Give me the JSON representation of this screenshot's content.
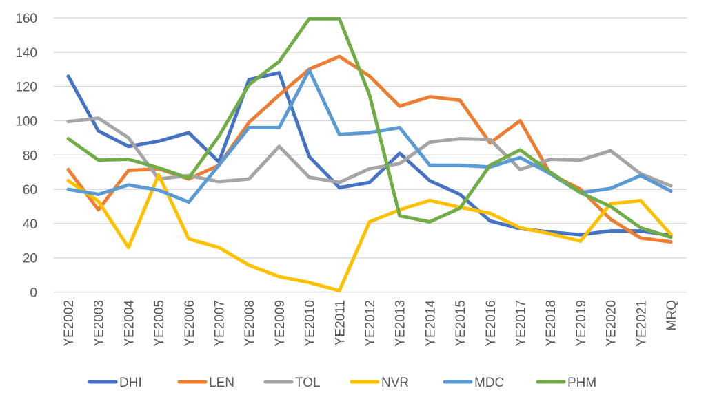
{
  "chart_data": {
    "type": "line",
    "title": "",
    "xlabel": "",
    "ylabel": "",
    "ylim": [
      0,
      160
    ],
    "yticks": [
      "0",
      "20",
      "40",
      "60",
      "80",
      "100",
      "120",
      "140",
      "160"
    ],
    "grid": true,
    "legend_position": "bottom",
    "categories": [
      "YE2002",
      "YE2003",
      "YE2004",
      "YE2005",
      "YE2006",
      "YE2007",
      "YE2008",
      "YE2009",
      "YE2010",
      "YE2011",
      "YE2012",
      "YE2013",
      "YE2014",
      "YE2015",
      "YE2016",
      "YE2017",
      "YE2018",
      "YE2019",
      "YE2020",
      "YE2021",
      "MRQ"
    ],
    "series": [
      {
        "name": "DHI",
        "color": "#4472c4",
        "values": [
          126,
          94,
          85,
          88,
          93,
          76,
          124,
          128,
          79,
          61,
          64,
          81,
          65,
          57,
          41.5,
          37,
          35,
          33.5,
          35.7,
          35.7,
          33
        ]
      },
      {
        "name": "LEN",
        "color": "#ed7d31",
        "values": [
          71.5,
          48,
          71,
          72,
          66,
          74,
          99,
          115,
          130,
          137.5,
          126,
          108.5,
          114,
          112,
          87,
          100,
          69,
          60,
          42.5,
          31.5,
          29.3
        ]
      },
      {
        "name": "TOL",
        "color": "#a5a5a5",
        "values": [
          99.5,
          101.5,
          90,
          66,
          68,
          64.5,
          66,
          85,
          67,
          64,
          72,
          75,
          87.5,
          89.5,
          89,
          71.5,
          77.5,
          77,
          82.5,
          69,
          62
        ]
      },
      {
        "name": "NVR",
        "color": "#ffc000",
        "values": [
          65,
          53,
          26,
          68.5,
          31,
          26,
          15.7,
          9,
          5.6,
          0.8,
          41,
          48,
          53.5,
          49.5,
          46,
          37.5,
          34,
          29.7,
          51.5,
          53.4,
          33.7
        ]
      },
      {
        "name": "MDC",
        "color": "#5b9bd5",
        "values": [
          60,
          57,
          62.5,
          59.5,
          52.5,
          74,
          96,
          96,
          129.5,
          92,
          93,
          96,
          74,
          74,
          73,
          78.5,
          69,
          58,
          60.5,
          68,
          59
        ]
      },
      {
        "name": "PHM",
        "color": "#70ad47",
        "values": [
          89.5,
          77,
          77.5,
          72.5,
          66.5,
          91,
          121,
          134.5,
          159.5,
          159.5,
          115,
          44.5,
          41,
          49,
          74,
          83,
          70,
          58,
          50,
          37.5,
          32
        ]
      }
    ]
  }
}
